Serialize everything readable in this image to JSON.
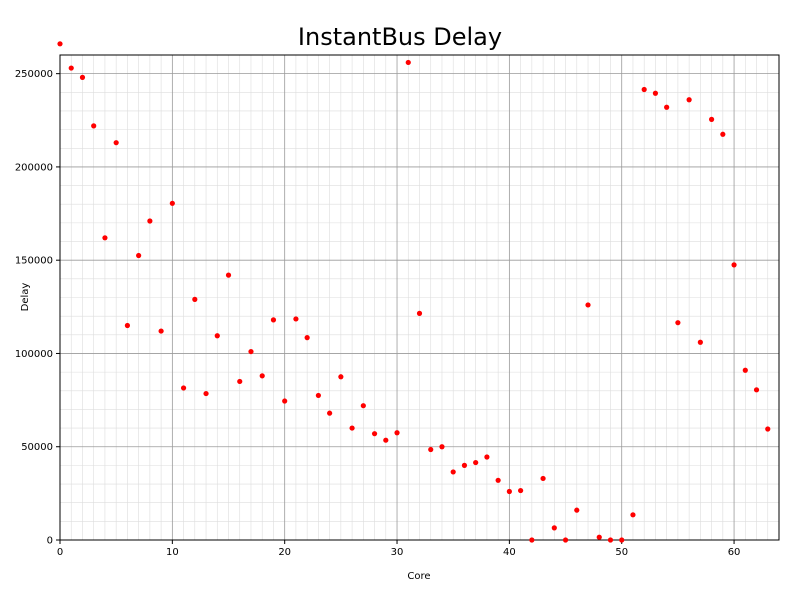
{
  "chart_data": {
    "type": "scatter",
    "title": "InstantBus Delay",
    "xlabel": "Core",
    "ylabel": "Delay",
    "xlim": [
      0,
      64
    ],
    "ylim": [
      0,
      260000
    ],
    "x_ticks": [
      0,
      10,
      20,
      30,
      40,
      50,
      60
    ],
    "y_ticks": [
      0,
      50000,
      100000,
      150000,
      200000,
      250000
    ],
    "x_tick_labels": [
      "0",
      "10",
      "20",
      "30",
      "40",
      "50",
      "60"
    ],
    "y_tick_labels": [
      "0",
      "50000",
      "100000",
      "150000",
      "200000",
      "250000"
    ],
    "grid": true,
    "marker_color": "#ff0000",
    "series": [
      {
        "x": [
          0,
          1,
          2,
          3,
          4,
          5,
          6,
          7,
          8,
          9,
          10,
          11,
          12,
          13,
          14,
          15,
          16,
          17,
          18,
          19,
          20,
          21,
          22,
          23,
          24,
          25,
          26,
          27,
          28,
          29,
          30,
          31,
          32,
          33,
          34,
          35,
          36,
          37,
          38,
          39,
          40,
          41,
          42,
          43,
          44,
          45,
          46,
          47,
          48,
          49,
          50,
          51,
          52,
          53,
          54,
          55,
          56,
          57,
          58,
          59,
          60,
          61,
          62,
          63
        ],
        "y": [
          266000,
          253000,
          248000,
          222000,
          162000,
          213000,
          115000,
          152500,
          171000,
          112000,
          180500,
          81500,
          129000,
          78500,
          109500,
          142000,
          85000,
          101000,
          88000,
          118000,
          74500,
          118500,
          108500,
          77500,
          68000,
          87500,
          60000,
          72000,
          57000,
          53500,
          57500,
          256000,
          121500,
          48500,
          50000,
          36500,
          40000,
          41500,
          44500,
          32000,
          26000,
          26500,
          0,
          33000,
          6500,
          0,
          16000,
          126000,
          1500,
          0,
          0,
          13500,
          241500,
          239500,
          232000,
          116500,
          236000,
          106000,
          225500,
          217500,
          147500,
          91000,
          80500,
          59500
        ]
      }
    ]
  }
}
